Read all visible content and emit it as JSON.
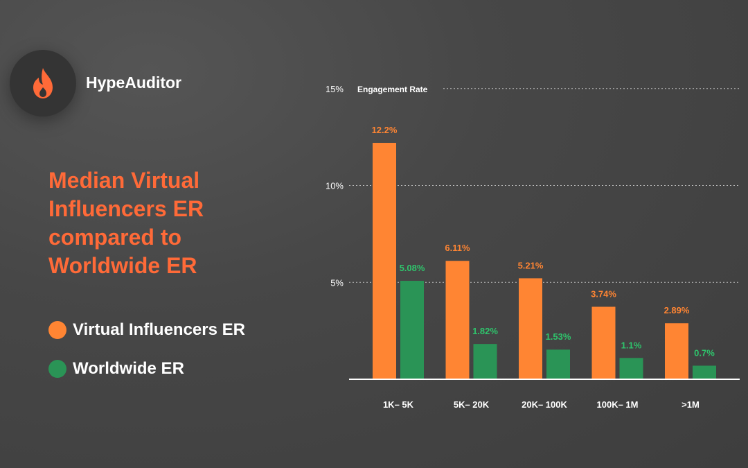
{
  "brand": {
    "name": "HypeAuditor",
    "logo_icon": "flame-icon",
    "logo_color": "#ff6a38"
  },
  "headline": "Median Virtual Influencers ER compared to Worldwide ER",
  "colors": {
    "accent": "#ff6a38",
    "virtual": "#ff8533",
    "worldwide": "#2a9456",
    "worldwide_label": "#2fc46c"
  },
  "legend": [
    {
      "label": "Virtual Influencers ER",
      "color": "#ff8533"
    },
    {
      "label": "Worldwide ER",
      "color": "#2a9456"
    }
  ],
  "chart_data": {
    "type": "bar",
    "title": "Engagement Rate",
    "categories": [
      "1K– 5K",
      "5K– 20K",
      "20K– 100K",
      "100K– 1M",
      ">1M"
    ],
    "series": [
      {
        "name": "Virtual Influencers ER",
        "values": [
          12.2,
          6.11,
          5.21,
          3.74,
          2.89
        ],
        "labels": [
          "12.2%",
          "6.11%",
          "5.21%",
          "3.74%",
          "2.89%"
        ]
      },
      {
        "name": "Worldwide ER",
        "values": [
          5.08,
          1.82,
          1.53,
          1.1,
          0.7
        ],
        "labels": [
          "5.08%",
          "1.82%",
          "1.53%",
          "1.1%",
          "0.7%"
        ]
      }
    ],
    "yticks": [
      5,
      10,
      15
    ],
    "ytick_labels": [
      "5%",
      "10%",
      "15%"
    ],
    "ylim": [
      0,
      15
    ],
    "grid": true,
    "legend_position": "left"
  }
}
